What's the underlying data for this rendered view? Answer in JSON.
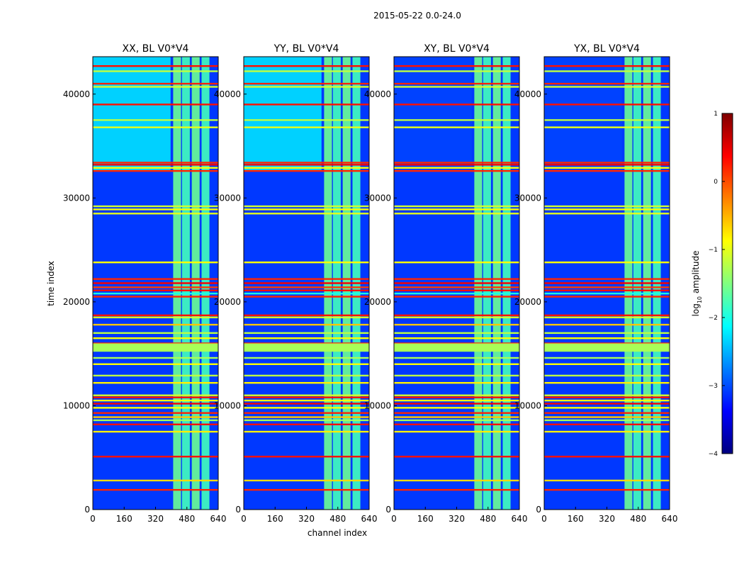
{
  "chart_data": {
    "type": "heatmap",
    "suptitle": "2015-05-22 0.0-24.0",
    "xlabel": "channel index",
    "ylabel": "time index",
    "xlim": [
      0,
      640
    ],
    "ylim": [
      0,
      43600
    ],
    "xticks": [
      "0",
      "160",
      "320",
      "480",
      "640"
    ],
    "yticks": [
      "0",
      "10000",
      "20000",
      "30000",
      "40000"
    ],
    "colormap": "jet",
    "colorbar": {
      "label_prefix": "log",
      "label_base": "10",
      "label_suffix": " amplitude",
      "range": [
        -4,
        1
      ],
      "ticks": [
        "1",
        "0",
        "−1",
        "−2",
        "−3",
        "−4"
      ]
    },
    "panels": [
      {
        "title": "XX, BL V0*V4",
        "upper_band": "light"
      },
      {
        "title": "YY, BL V0*V4",
        "upper_band": "light"
      },
      {
        "title": "XY, BL V0*V4",
        "upper_band": "dark"
      },
      {
        "title": "YX, BL V0*V4",
        "upper_band": "dark"
      }
    ],
    "rfi_channel_bands": [
      [
        410,
        450
      ],
      [
        455,
        495
      ],
      [
        505,
        545
      ],
      [
        555,
        595
      ]
    ],
    "flagged_time_rows": [
      {
        "time": 1900,
        "value": 0.2
      },
      {
        "time": 2800,
        "value": -0.7
      },
      {
        "time": 5100,
        "value": 0.3
      },
      {
        "time": 7500,
        "value": -0.8
      },
      {
        "time": 8200,
        "value": 0.3
      },
      {
        "time": 8600,
        "value": -1.3
      },
      {
        "time": 8900,
        "value": -0.6
      },
      {
        "time": 9300,
        "value": 0.2
      },
      {
        "time": 9800,
        "value": -0.9
      },
      {
        "time": 10200,
        "value": 0.4
      },
      {
        "time": 10500,
        "value": -0.9
      },
      {
        "time": 10800,
        "value": 0.3
      },
      {
        "time": 11000,
        "value": -1.1
      },
      {
        "time": 12200,
        "value": -0.8
      },
      {
        "time": 12900,
        "value": -1.2
      },
      {
        "time": 14000,
        "value": -0.9
      },
      {
        "time": 14600,
        "value": -1.3
      },
      {
        "time": 15500,
        "value": -1.2
      },
      {
        "time": 15700,
        "value": -1.3
      },
      {
        "time": 16000,
        "value": 0.2
      },
      {
        "time": 16500,
        "value": -0.9
      },
      {
        "time": 17000,
        "value": -1.2
      },
      {
        "time": 17800,
        "value": -0.6
      },
      {
        "time": 18500,
        "value": -1.1
      },
      {
        "time": 18700,
        "value": 0.3
      },
      {
        "time": 20500,
        "value": 0.2
      },
      {
        "time": 20800,
        "value": -2.0
      },
      {
        "time": 21100,
        "value": 0.3
      },
      {
        "time": 21400,
        "value": 0.1
      },
      {
        "time": 21800,
        "value": 0.4
      },
      {
        "time": 22200,
        "value": 0.2
      },
      {
        "time": 23800,
        "value": -0.9
      },
      {
        "time": 28500,
        "value": -1.0
      },
      {
        "time": 28900,
        "value": -0.9
      },
      {
        "time": 29200,
        "value": -1.1
      },
      {
        "time": 32600,
        "value": 0.2
      },
      {
        "time": 32900,
        "value": -0.9
      },
      {
        "time": 33200,
        "value": 0.4
      },
      {
        "time": 33400,
        "value": 0.2
      },
      {
        "time": 36800,
        "value": -1.0
      },
      {
        "time": 37500,
        "value": -1.2
      },
      {
        "time": 39000,
        "value": 0.3
      },
      {
        "time": 40700,
        "value": -1.1
      },
      {
        "time": 41000,
        "value": 0.2
      },
      {
        "time": 42200,
        "value": -1.2
      },
      {
        "time": 42700,
        "value": 0.3
      }
    ]
  }
}
